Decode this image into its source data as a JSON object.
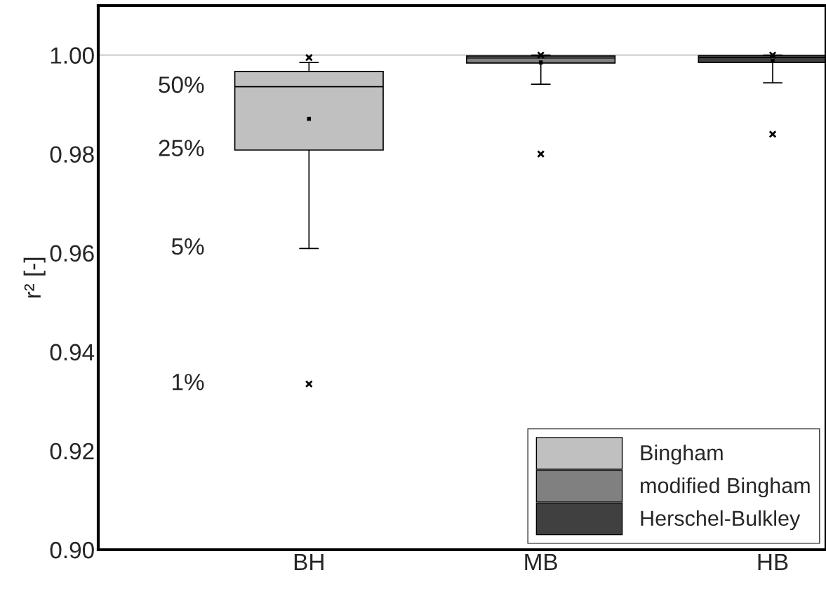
{
  "chart_data": {
    "type": "box",
    "ylabel": "r² [-]",
    "categories": [
      "BH",
      "MB",
      "HB"
    ],
    "series": [
      {
        "name": "Bingham",
        "color": "#c0c0c0",
        "boxes": [
          {
            "low": 0.9609,
            "q1": 0.9808,
            "median": 0.9936,
            "q3": 0.9967,
            "high": 0.9985,
            "mean": 0.9871,
            "outliers": [
              0.9335,
              0.9995
            ]
          },
          null,
          null
        ]
      },
      {
        "name": "modified Bingham",
        "color": "#808080",
        "boxes": [
          null,
          {
            "low": 0.9941,
            "q1": 0.9984,
            "median": 0.9994,
            "q3": 0.9998,
            "high": 1.0,
            "mean": 0.9985,
            "outliers": [
              0.98,
              1.0
            ]
          },
          null
        ]
      },
      {
        "name": "Herschel-Bulkley",
        "color": "#404040",
        "boxes": [
          null,
          null,
          {
            "low": 0.9944,
            "q1": 0.9985,
            "median": 0.9995,
            "q3": 0.9999,
            "high": 1.0,
            "mean": 0.9988,
            "outliers": [
              0.984,
              1.0
            ]
          }
        ]
      }
    ],
    "ylim": [
      0.9,
      1.01
    ],
    "yticks": [
      {
        "value": 0.9,
        "label": "0.90"
      },
      {
        "value": 0.92,
        "label": "0.92"
      },
      {
        "value": 0.94,
        "label": "0.94"
      },
      {
        "value": 0.96,
        "label": "0.96"
      },
      {
        "value": 0.98,
        "label": "0.98"
      },
      {
        "value": 1.0,
        "label": "1.00"
      }
    ],
    "ref_lines": [
      {
        "axis": "y",
        "value": 1.0,
        "color": "#b0b0b0"
      }
    ],
    "annotations": [
      "50%",
      "25%",
      "5%",
      "1%"
    ],
    "legend": "bottom right",
    "grid": false
  }
}
